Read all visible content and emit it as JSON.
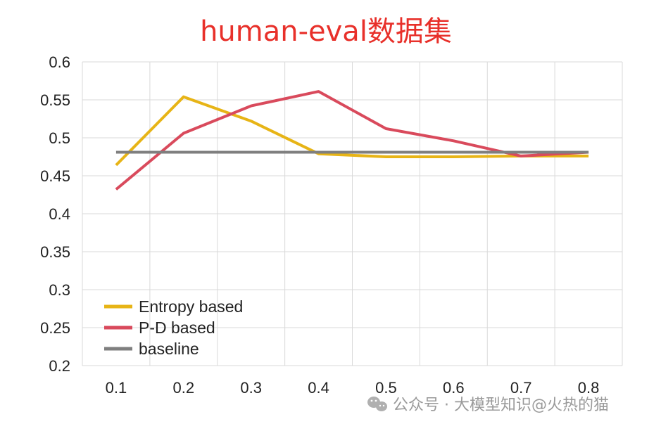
{
  "chart_data": {
    "type": "line",
    "title": "human-eval数据集",
    "title_color": "#e8302a",
    "x": [
      0.1,
      0.2,
      0.3,
      0.4,
      0.5,
      0.6,
      0.7,
      0.8
    ],
    "x_tick_labels": [
      "0.1",
      "0.2",
      "0.3",
      "0.4",
      "0.5",
      "0.6",
      "0.7",
      "0.8"
    ],
    "ylim": [
      0.2,
      0.6
    ],
    "y_tick_labels": [
      "0.2",
      "0.25",
      "0.3",
      "0.35",
      "0.4",
      "0.45",
      "0.5",
      "0.55",
      "0.6"
    ],
    "grid": true,
    "legend_position": "bottom-left",
    "series": [
      {
        "name": "Entropy based",
        "color": "#e7b416",
        "values": [
          0.464,
          0.554,
          0.522,
          0.479,
          0.475,
          0.475,
          0.476,
          0.476
        ]
      },
      {
        "name": "P-D based",
        "color": "#d94a5c",
        "values": [
          0.432,
          0.506,
          0.542,
          0.561,
          0.512,
          0.496,
          0.476,
          0.481
        ]
      },
      {
        "name": "baseline",
        "color": "#7f7f7f",
        "values": [
          0.481,
          0.481,
          0.481,
          0.481,
          0.481,
          0.481,
          0.481,
          0.481
        ]
      }
    ]
  },
  "watermark": {
    "text": "公众号 · 大模型知识@火热的猫",
    "icon": "wechat-icon"
  }
}
